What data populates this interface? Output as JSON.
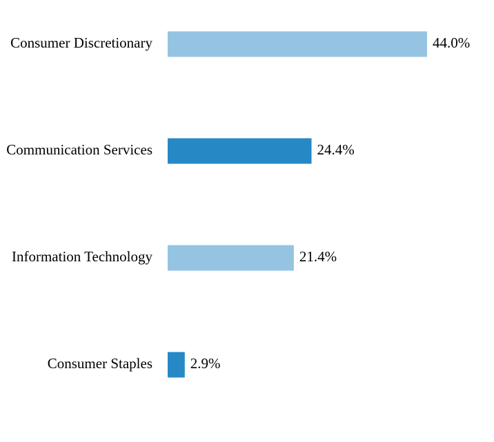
{
  "chart_data": {
    "type": "bar",
    "orientation": "horizontal",
    "categories": [
      "Consumer Discretionary",
      "Communication Services",
      "Information Technology",
      "Consumer Staples"
    ],
    "values": [
      44.0,
      24.4,
      21.4,
      2.9
    ],
    "value_labels": [
      "44.0%",
      "24.4%",
      "21.4%",
      "2.9%"
    ],
    "unit": "%",
    "title": "",
    "xlabel": "",
    "ylabel": "",
    "xlim": [
      0,
      44.0
    ],
    "grid": false,
    "legend": "none",
    "colors": [
      "#94c4e2",
      "#2689c6",
      "#94c4e2",
      "#2689c6"
    ]
  }
}
